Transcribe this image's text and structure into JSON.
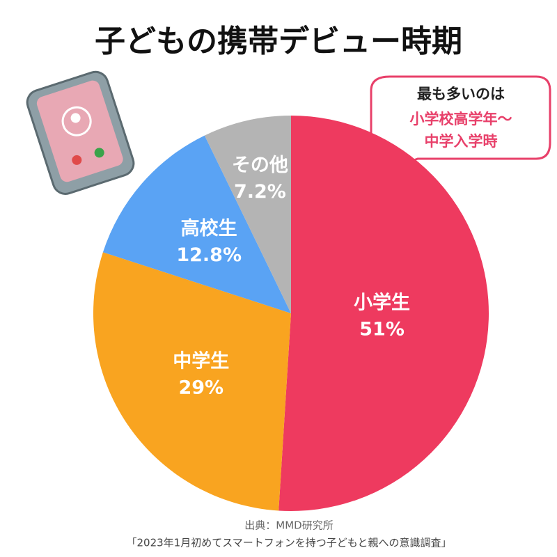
{
  "chart_data": {
    "type": "pie",
    "title": "子どもの携帯デビュー時期",
    "categories": [
      "小学生",
      "中学生",
      "高校生",
      "その他"
    ],
    "values": [
      51,
      29,
      12.8,
      7.2
    ],
    "value_labels": [
      "51%",
      "29%",
      "12.8%",
      "7.2%"
    ],
    "colors": [
      "#ee3a5f",
      "#f9a420",
      "#5aa3f4",
      "#b4b4b4"
    ],
    "annotations": [
      "最も多いのは",
      "小学校高学年〜",
      "中学入学時"
    ],
    "source": [
      "出典：MMD研究所",
      "「2023年1月初めてスマートフォンを持つ子どもと親への意識調査」"
    ]
  }
}
